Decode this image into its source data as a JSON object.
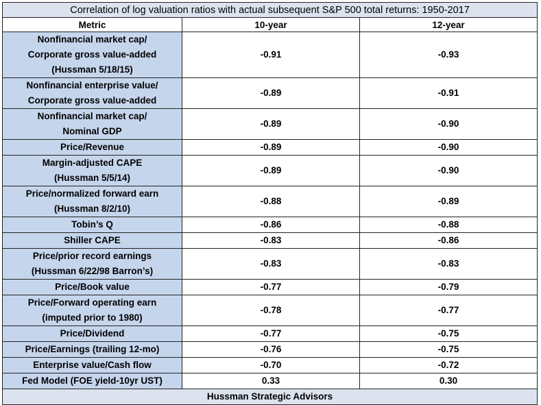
{
  "chart_data": {
    "type": "table",
    "title": "Correlation of log valuation ratios with actual subsequent S&P  500 total returns: 1950-2017",
    "columns": [
      "Metric",
      "10-year",
      "12-year"
    ],
    "rows": [
      {
        "metric": [
          "Nonfinancial market cap/",
          "Corporate gross value-added",
          "(Hussman 5/18/15)"
        ],
        "y10": "-0.91",
        "y12": "-0.93"
      },
      {
        "metric": [
          "Nonfinancial enterprise value/",
          "Corporate gross value-added"
        ],
        "y10": "-0.89",
        "y12": "-0.91"
      },
      {
        "metric": [
          "Nonfinancial market cap/",
          "Nominal GDP"
        ],
        "y10": "-0.89",
        "y12": "-0.90"
      },
      {
        "metric": [
          "Price/Revenue"
        ],
        "y10": "-0.89",
        "y12": "-0.90"
      },
      {
        "metric": [
          "Margin-adjusted CAPE",
          "(Hussman 5/5/14)"
        ],
        "y10": "-0.89",
        "y12": "-0.90"
      },
      {
        "metric": [
          "Price/normalized forward earn",
          "(Hussman 8/2/10)"
        ],
        "y10": "-0.88",
        "y12": "-0.89"
      },
      {
        "metric": [
          "Tobin’s Q"
        ],
        "y10": "-0.86",
        "y12": "-0.88"
      },
      {
        "metric": [
          "Shiller CAPE"
        ],
        "y10": "-0.83",
        "y12": "-0.86"
      },
      {
        "metric": [
          "Price/prior record earnings",
          "(Hussman 6/22/98 Barron’s)"
        ],
        "y10": "-0.83",
        "y12": "-0.83"
      },
      {
        "metric": [
          "Price/Book value"
        ],
        "y10": "-0.77",
        "y12": "-0.79"
      },
      {
        "metric": [
          "Price/Forward operating earn",
          "(imputed prior to 1980)"
        ],
        "y10": "-0.78",
        "y12": "-0.77"
      },
      {
        "metric": [
          "Price/Dividend"
        ],
        "y10": "-0.77",
        "y12": "-0.75"
      },
      {
        "metric": [
          "Price/Earnings (trailing 12-mo)"
        ],
        "y10": "-0.76",
        "y12": "-0.75"
      },
      {
        "metric": [
          "Enterprise value/Cash flow"
        ],
        "y10": "-0.70",
        "y12": "-0.72"
      },
      {
        "metric": [
          "Fed Model (FOE yield-10yr UST)"
        ],
        "y10": "0.33",
        "y12": "0.30"
      }
    ],
    "footer": "Hussman Strategic Advisors"
  },
  "colors": {
    "metric_fill": "#c5d5ec",
    "title_fill": "#dce3ef",
    "border": "#222222"
  }
}
